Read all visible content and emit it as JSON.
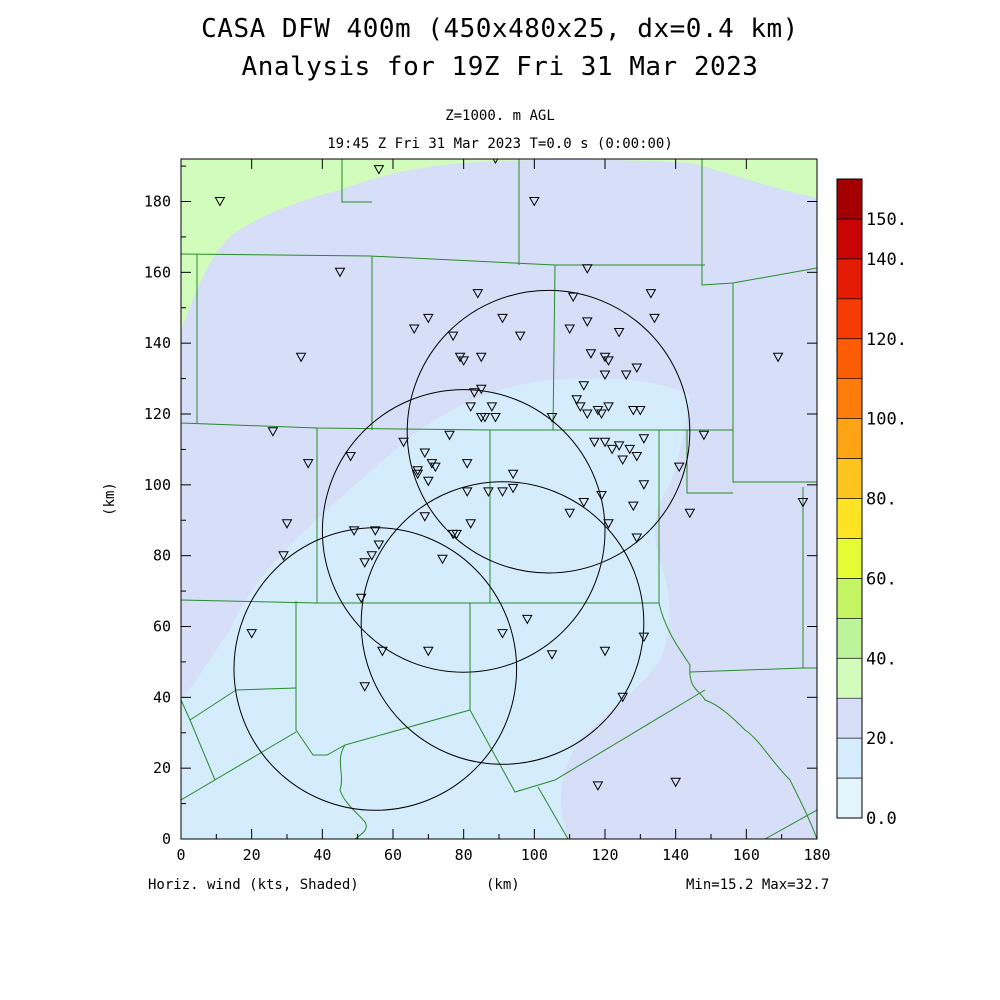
{
  "header": {
    "title_line1": "CASA DFW 400m (450x480x25, dx=0.4 km)",
    "title_line2": "Analysis for 19Z Fri 31 Mar 2023",
    "level_line": "Z=1000. m AGL",
    "time_line": "19:45 Z Fri 31 Mar 2023    T=0.0 s (0:00:00)"
  },
  "footer": {
    "left": "Horiz. wind (kts, Shaded)",
    "center": "(km)",
    "right": "Min=15.2 Max=32.7"
  },
  "chart_data": {
    "type": "contour-map",
    "title": "CASA DFW 400m (450x480x25, dx=0.4 km)",
    "subtitle": "Analysis for 19Z Fri 31 Mar 2023",
    "field": "Horiz. wind (kts, Shaded)",
    "level": "Z=1000. m AGL",
    "valid_time": "19:45 Z Fri 31 Mar 2023",
    "forecast_time": "T=0.0 s (0:00:00)",
    "xlabel": "(km)",
    "ylabel": "(km)",
    "xlim": [
      0,
      180
    ],
    "ylim": [
      0,
      192
    ],
    "x_ticks": [
      "0",
      "20",
      "40",
      "60",
      "80",
      "100",
      "120",
      "140",
      "160",
      "180"
    ],
    "y_ticks": [
      "0",
      "20",
      "40",
      "60",
      "80",
      "100",
      "120",
      "140",
      "160",
      "180"
    ],
    "min": 15.2,
    "max": 32.7,
    "colorbar": {
      "labels": [
        {
          "text": "0.0",
          "value": 0
        },
        {
          "text": "20.",
          "value": 20
        },
        {
          "text": "40.",
          "value": 40
        },
        {
          "text": "60.",
          "value": 60
        },
        {
          "text": "80.",
          "value": 80
        },
        {
          "text": "100.",
          "value": 100
        },
        {
          "text": "120.",
          "value": 120
        },
        {
          "text": "140.",
          "value": 140
        },
        {
          "text": "150.",
          "value": 150
        }
      ],
      "bins": [
        {
          "from": 0,
          "to": 10,
          "color": "#e4f4fc"
        },
        {
          "from": 10,
          "to": 20,
          "color": "#d4ecfc"
        },
        {
          "from": 20,
          "to": 30,
          "color": "#d6def8"
        },
        {
          "from": 30,
          "to": 40,
          "color": "#d2fcbc"
        },
        {
          "from": 40,
          "to": 50,
          "color": "#bcf49c"
        },
        {
          "from": 50,
          "to": 60,
          "color": "#c4f464"
        },
        {
          "from": 60,
          "to": 70,
          "color": "#e4fc34"
        },
        {
          "from": 70,
          "to": 80,
          "color": "#fce424"
        },
        {
          "from": 80,
          "to": 90,
          "color": "#fcc41c"
        },
        {
          "from": 90,
          "to": 100,
          "color": "#fca414"
        },
        {
          "from": 100,
          "to": 110,
          "color": "#fc7c0c"
        },
        {
          "from": 110,
          "to": 120,
          "color": "#fc5c04"
        },
        {
          "from": 120,
          "to": 130,
          "color": "#f43c04"
        },
        {
          "from": 130,
          "to": 140,
          "color": "#e41c04"
        },
        {
          "from": 140,
          "to": 150,
          "color": "#c80404"
        },
        {
          "from": 150,
          "to": 160,
          "color": "#a40000"
        }
      ]
    },
    "colors": {
      "band_0_10": "#e4f4fc",
      "band_10_20": "#d4ecfc",
      "band_20_30": "#d6def8",
      "band_30_40": "#d2fcbc",
      "county_lines": "#2a8a2a",
      "radar_rings": "#000000",
      "stations": "#000000"
    },
    "radar_rings": [
      {
        "center": [
          104,
          115
        ],
        "radius": 40
      },
      {
        "center": [
          80,
          87
        ],
        "radius": 40
      },
      {
        "center": [
          91,
          61
        ],
        "radius": 40
      },
      {
        "center": [
          55,
          48
        ],
        "radius": 40
      }
    ],
    "stations": [
      [
        11,
        180
      ],
      [
        56,
        189
      ],
      [
        89,
        192
      ],
      [
        100,
        180
      ],
      [
        45,
        160
      ],
      [
        34,
        136
      ],
      [
        66,
        144
      ],
      [
        70,
        147
      ],
      [
        77,
        142
      ],
      [
        79,
        136
      ],
      [
        80,
        135
      ],
      [
        85,
        136
      ],
      [
        84,
        154
      ],
      [
        91,
        147
      ],
      [
        96,
        142
      ],
      [
        110,
        144
      ],
      [
        111,
        153
      ],
      [
        115,
        161
      ],
      [
        115,
        146
      ],
      [
        116,
        137
      ],
      [
        120,
        136
      ],
      [
        121,
        135
      ],
      [
        124,
        143
      ],
      [
        126,
        131
      ],
      [
        129,
        133
      ],
      [
        133,
        154
      ],
      [
        134,
        147
      ],
      [
        169,
        136
      ],
      [
        26,
        115
      ],
      [
        36,
        106
      ],
      [
        48,
        108
      ],
      [
        63,
        112
      ],
      [
        67,
        104
      ],
      [
        67,
        103
      ],
      [
        69,
        109
      ],
      [
        70,
        101
      ],
      [
        71,
        106
      ],
      [
        72,
        105
      ],
      [
        76,
        114
      ],
      [
        81,
        106
      ],
      [
        82,
        122
      ],
      [
        83,
        126
      ],
      [
        85,
        127
      ],
      [
        85,
        119
      ],
      [
        86,
        119
      ],
      [
        88,
        122
      ],
      [
        89,
        119
      ],
      [
        105,
        119
      ],
      [
        112,
        124
      ],
      [
        113,
        122
      ],
      [
        114,
        128
      ],
      [
        115,
        120
      ],
      [
        117,
        112
      ],
      [
        118,
        121
      ],
      [
        119,
        120
      ],
      [
        120,
        112
      ],
      [
        121,
        122
      ],
      [
        122,
        110
      ],
      [
        124,
        111
      ],
      [
        125,
        107
      ],
      [
        127,
        110
      ],
      [
        128,
        121
      ],
      [
        129,
        108
      ],
      [
        130,
        121
      ],
      [
        131,
        113
      ],
      [
        120,
        131
      ],
      [
        141,
        105
      ],
      [
        144,
        92
      ],
      [
        148,
        114
      ],
      [
        176,
        95
      ],
      [
        30,
        89
      ],
      [
        29,
        80
      ],
      [
        49,
        87
      ],
      [
        52,
        78
      ],
      [
        55,
        87
      ],
      [
        56,
        83
      ],
      [
        54,
        80
      ],
      [
        51,
        68
      ],
      [
        69,
        91
      ],
      [
        74,
        79
      ],
      [
        77,
        86
      ],
      [
        78,
        86
      ],
      [
        81,
        98
      ],
      [
        82,
        89
      ],
      [
        87,
        98
      ],
      [
        91,
        98
      ],
      [
        94,
        99
      ],
      [
        94,
        103
      ],
      [
        110,
        92
      ],
      [
        114,
        95
      ],
      [
        119,
        97
      ],
      [
        121,
        89
      ],
      [
        128,
        94
      ],
      [
        129,
        85
      ],
      [
        131,
        100
      ],
      [
        20,
        58
      ],
      [
        52,
        43
      ],
      [
        57,
        53
      ],
      [
        70,
        53
      ],
      [
        91,
        58
      ],
      [
        98,
        62
      ],
      [
        105,
        52
      ],
      [
        120,
        53
      ],
      [
        131,
        57
      ],
      [
        125,
        40
      ],
      [
        118,
        15
      ],
      [
        140,
        16
      ]
    ]
  }
}
